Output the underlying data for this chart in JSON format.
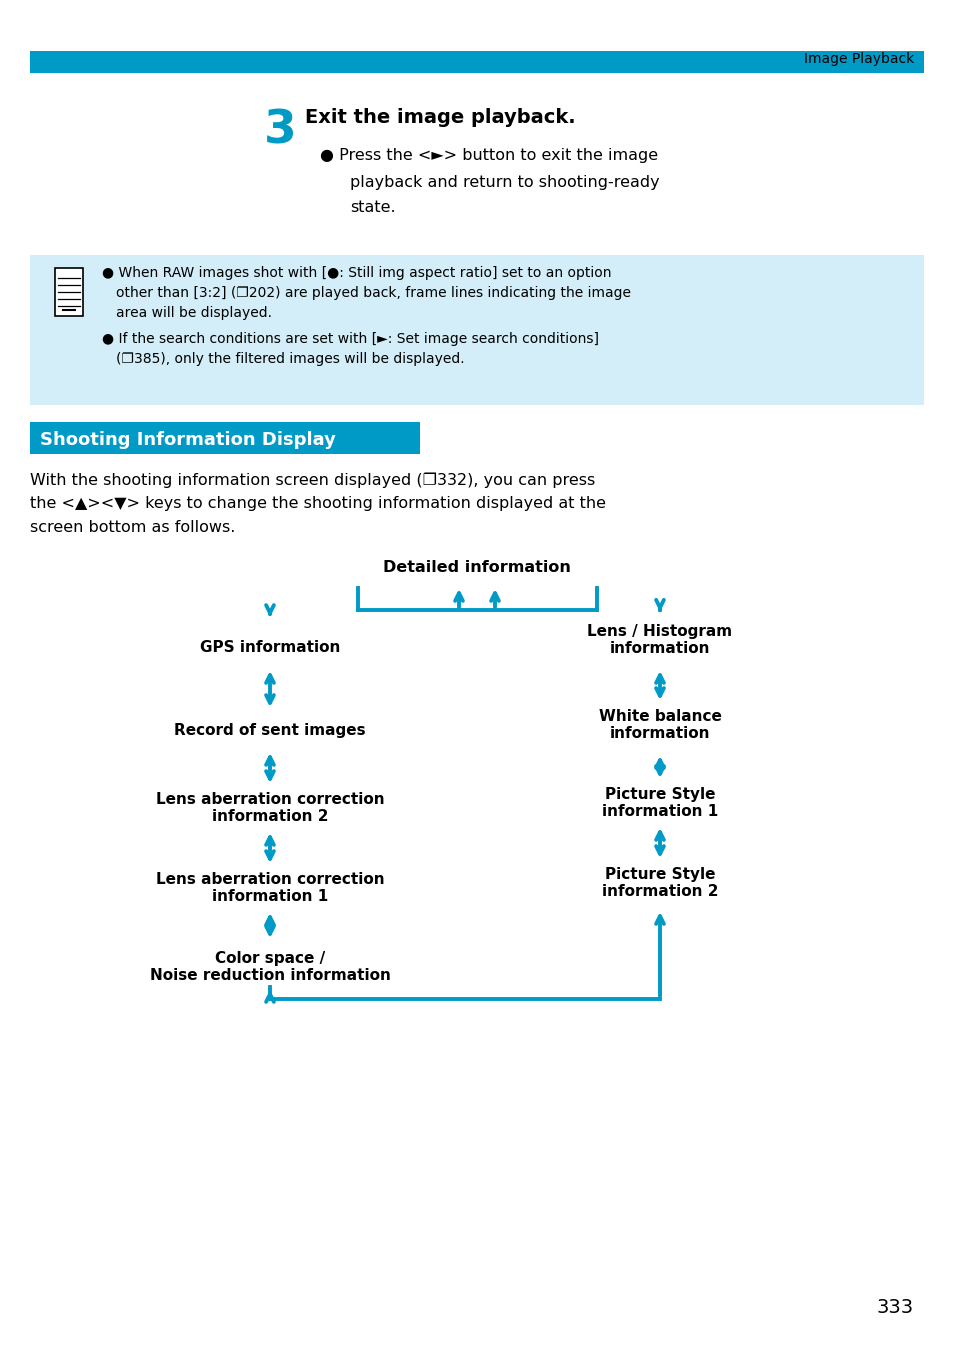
{
  "page_header": "Image Playback",
  "header_bar_color": "#009ac7",
  "bg_color": "#ffffff",
  "step_number": "3",
  "step_number_color": "#009ac7",
  "step_title": "Exit the image playback.",
  "step_bullet_line1": "● Press the <►> button to exit the image",
  "step_bullet_line2": "playback and return to shooting-ready",
  "step_bullet_line3": "state.",
  "note_bg_color": "#d3eef8",
  "note_bullet1_line1": "● When RAW images shot with [●: Still img aspect ratio] set to an option",
  "note_bullet1_line2": "other than [3:2] (❐202) are played back, frame lines indicating the image",
  "note_bullet1_line3": "area will be displayed.",
  "note_bullet2_line1": "● If the search conditions are set with [►: Set image search conditions]",
  "note_bullet2_line2": "(❐385), only the filtered images will be displayed.",
  "section_title": "Shooting Information Display",
  "section_title_bg": "#009ac7",
  "section_text_line1": "With the shooting information screen displayed (❐332), you can press",
  "section_text_line2": "the <▲><▼> keys to change the shooting information displayed at the",
  "section_text_line3": "screen bottom as follows.",
  "arrow_color": "#009ac7",
  "page_number": "333",
  "fig_w": 9.54,
  "fig_h": 13.45,
  "dpi": 100
}
